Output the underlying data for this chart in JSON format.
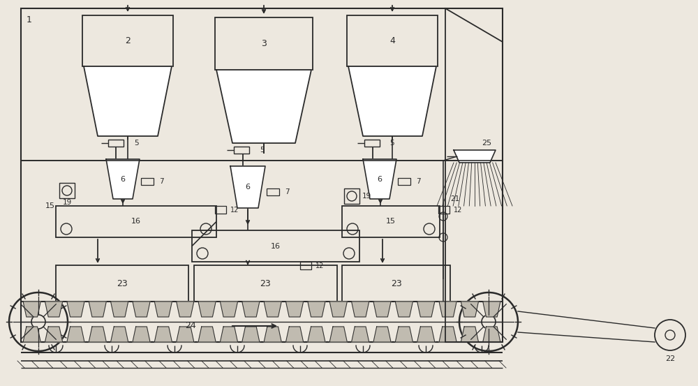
{
  "bg_color": "#ede8df",
  "line_color": "#2a2a2a",
  "figsize": [
    10.0,
    5.53
  ],
  "dpi": 100
}
